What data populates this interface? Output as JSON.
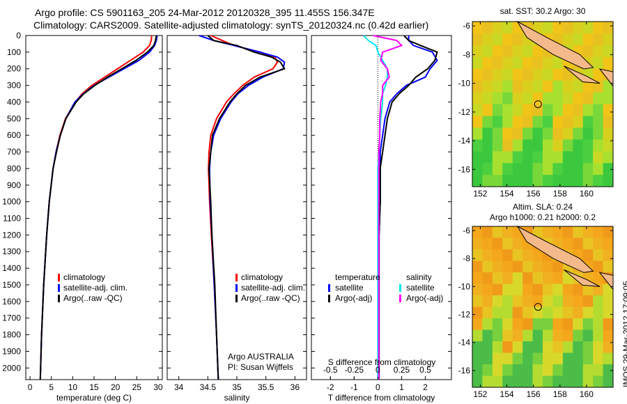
{
  "title": {
    "line1": "Argo profile: CS 5901163_205 24-Mar-2012 20120328_395 11.455S 156.347E",
    "line2": "Climatology: CARS2009. Satellite-adjusted climatology: synTS_20120324.nc (0.42d earlier)"
  },
  "side_stamp": "IMOS 29-Mar-2012 17:09:05",
  "colors": {
    "clim": "#ff0000",
    "sat": "#0000ff",
    "argo": "#000000",
    "s_sat": "#00e5ee",
    "s_argo": "#ff00ff"
  },
  "chart_data": [
    {
      "type": "line",
      "xlabel": "temperature (deg C)",
      "ylabel": "",
      "xlim": [
        -1,
        31
      ],
      "ylim": [
        2070,
        0
      ],
      "xticks": [
        "0",
        "5",
        "10",
        "15",
        "20",
        "25",
        "30"
      ],
      "xtick_vals": [
        0,
        5,
        10,
        15,
        20,
        25,
        30
      ],
      "yticks": [
        "0",
        "100",
        "200",
        "300",
        "400",
        "500",
        "600",
        "700",
        "800",
        "900",
        "1000",
        "1100",
        "1200",
        "1300",
        "1400",
        "1500",
        "1600",
        "1700",
        "1800",
        "1900",
        "2000"
      ],
      "legend": [
        "climatology",
        "satellite-adj. clim.",
        "Argo(..raw -QC)"
      ],
      "depth": [
        0,
        30,
        60,
        100,
        150,
        200,
        250,
        300,
        350,
        400,
        500,
        600,
        700,
        800,
        1000,
        1200,
        1500,
        1800,
        2070
      ],
      "series": [
        {
          "name": "climatology",
          "values": [
            28.5,
            28.4,
            28,
            26.5,
            23.5,
            20.5,
            17.5,
            14.5,
            12.2,
            10.6,
            8.3,
            7,
            6.1,
            5.4,
            4.5,
            3.9,
            3.2,
            2.7,
            2.4
          ]
        },
        {
          "name": "satellite-adj. clim.",
          "values": [
            29.8,
            29.6,
            29.2,
            28,
            25.5,
            22,
            18.5,
            15,
            12.5,
            10.5,
            8.4,
            7.1,
            6.1,
            5.4,
            4.5,
            3.9,
            3.2,
            2.7,
            2.4
          ]
        },
        {
          "name": "Argo(..raw -QC)",
          "values": [
            29.6,
            29.4,
            29,
            27.5,
            24.8,
            21.5,
            18.2,
            15.2,
            12.6,
            10.8,
            8.4,
            7.1,
            6.2,
            5.4,
            4.5,
            3.9,
            3.2,
            2.7,
            2.4
          ]
        }
      ]
    },
    {
      "type": "line",
      "xlabel": "salinity",
      "xlim": [
        33.8,
        36.2
      ],
      "ylim": [
        2070,
        0
      ],
      "xticks": [
        "34",
        "34.5",
        "35",
        "35.5",
        "36"
      ],
      "xtick_vals": [
        34,
        34.5,
        35,
        35.5,
        36
      ],
      "legend": [
        "climatology",
        "satellite-adj. clim.",
        "Argo(..raw -QC)"
      ],
      "annotation": [
        "Argo AUSTRALIA",
        "PI: Susan Wijffels"
      ],
      "depth": [
        0,
        30,
        60,
        100,
        130,
        160,
        200,
        250,
        300,
        350,
        400,
        500,
        600,
        700,
        800,
        1000,
        1200,
        1500,
        1800,
        2070
      ],
      "series": [
        {
          "name": "climatology",
          "values": [
            34.55,
            34.75,
            34.95,
            35.4,
            35.65,
            35.7,
            35.62,
            35.3,
            35.1,
            34.95,
            34.82,
            34.65,
            34.55,
            34.52,
            34.51,
            34.53,
            34.56,
            34.61,
            34.65,
            34.68
          ]
        },
        {
          "name": "satellite-adj. clim.",
          "values": [
            34.35,
            34.6,
            34.95,
            35.4,
            35.7,
            35.82,
            35.8,
            35.45,
            35.2,
            35.02,
            34.9,
            34.72,
            34.6,
            34.55,
            34.53,
            34.54,
            34.57,
            34.61,
            34.65,
            34.68
          ]
        },
        {
          "name": "Argo(..raw -QC)",
          "values": [
            34.5,
            34.6,
            35.0,
            35.3,
            35.6,
            35.75,
            35.82,
            35.4,
            35.15,
            35.0,
            34.88,
            34.7,
            34.58,
            34.55,
            34.52,
            34.55,
            34.57,
            34.62,
            34.65,
            34.68
          ]
        }
      ]
    },
    {
      "type": "line",
      "xlabel": "T difference from climatology",
      "x2label": "S difference from climatology",
      "xlim": [
        -2.8,
        3.1
      ],
      "x2lim": [
        -0.7,
        0.775
      ],
      "ylim": [
        2070,
        0
      ],
      "xticks": [
        "-2",
        "-1",
        "0",
        "1",
        "2"
      ],
      "xtick_vals": [
        -2,
        -1,
        0,
        1,
        2
      ],
      "x2ticks": [
        "-0.5",
        "-0.25",
        "0",
        "0.25",
        "0.5"
      ],
      "x2tick_vals": [
        -0.5,
        -0.25,
        0,
        0.25,
        0.5
      ],
      "legend_t": {
        "title": "temperature",
        "items": [
          "satellite",
          "Argo(-adj)"
        ]
      },
      "legend_s": {
        "title": "salinity",
        "items": [
          "satellite",
          "Argo(-adj)"
        ]
      },
      "depth": [
        0,
        30,
        60,
        100,
        150,
        200,
        250,
        300,
        350,
        400,
        500,
        600,
        700,
        800,
        1000,
        1200,
        1500,
        1800,
        2070
      ],
      "series": [
        {
          "name": "T satellite",
          "axis": "T",
          "values": [
            1.3,
            1.3,
            1.5,
            2.3,
            2.5,
            2.2,
            2.0,
            1.2,
            0.8,
            0.5,
            0.3,
            0.2,
            0.1,
            0.1,
            0.1,
            0.05,
            0.05,
            0.05,
            0.05
          ]
        },
        {
          "name": "T Argo(-adj)",
          "axis": "T",
          "values": [
            1.1,
            1.3,
            1.8,
            2.5,
            2.4,
            2.1,
            1.6,
            1.3,
            0.9,
            0.6,
            0.4,
            0.3,
            0.2,
            0.1,
            0.1,
            0.05,
            0.05,
            0.05,
            0.05
          ]
        },
        {
          "name": "S satellite",
          "axis": "S",
          "values": [
            -0.15,
            -0.1,
            -0.02,
            0,
            0.05,
            0.1,
            0.1,
            0.08,
            0.05,
            0.05,
            0.03,
            0.02,
            0.01,
            0,
            0,
            0,
            0,
            0,
            0
          ]
        },
        {
          "name": "S Argo(-adj)",
          "axis": "S",
          "values": [
            -0.05,
            0.2,
            0.25,
            0.05,
            0.03,
            0.1,
            0.12,
            0.05,
            0.05,
            0.03,
            0.02,
            0.02,
            0.01,
            0.01,
            0.01,
            0.01,
            0.01,
            0.01,
            0.01
          ]
        }
      ]
    },
    {
      "type": "heatmap",
      "title": "sat. SST: 30.2 Argo: 30",
      "lonlim": [
        151.4,
        162
      ],
      "latlim": [
        -17.2,
        -5.7
      ],
      "xticks": [
        "152",
        "154",
        "156",
        "158",
        "160"
      ],
      "yticks": [
        "-6",
        "-8",
        "-10",
        "-12",
        "-14",
        "-16"
      ],
      "marker": {
        "lon": 156.347,
        "lat": -11.455
      }
    },
    {
      "type": "heatmap",
      "title": [
        "Altim. SLA: 0.24",
        "Argo h1000: 0.21 h2000: 0.2"
      ],
      "lonlim": [
        151.4,
        162
      ],
      "latlim": [
        -17.2,
        -5.7
      ],
      "xticks": [
        "152",
        "154",
        "156",
        "158",
        "160"
      ],
      "yticks": [
        "-6",
        "-8",
        "-10",
        "-12",
        "-14",
        "-16"
      ],
      "marker": {
        "lon": 156.347,
        "lat": -11.455
      }
    }
  ]
}
